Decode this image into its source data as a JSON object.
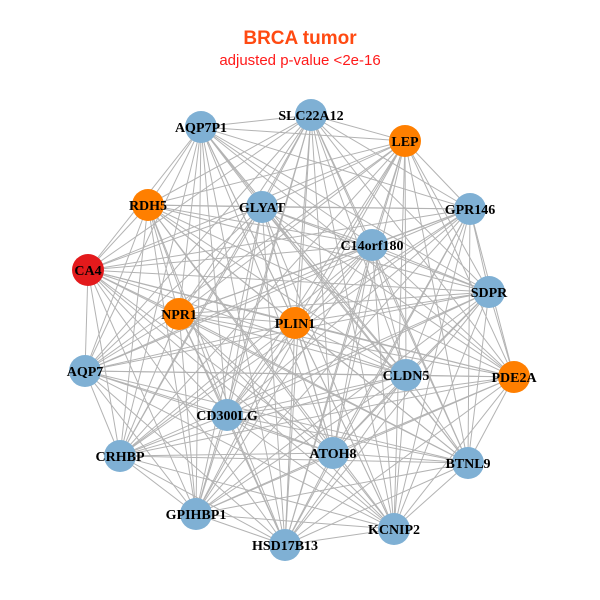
{
  "title": "BRCA tumor",
  "subtitle": "adjusted p-value <2e-16",
  "colors": {
    "blue": "#7fb0d4",
    "orange": "#ff7f00",
    "red": "#e31a1c",
    "edge": "#b3b3b3"
  },
  "nodes": [
    {
      "id": "SLC22A12",
      "color": "blue"
    },
    {
      "id": "AQP7P1",
      "color": "blue"
    },
    {
      "id": "LEP",
      "color": "orange"
    },
    {
      "id": "RDH5",
      "color": "orange"
    },
    {
      "id": "GLYAT",
      "color": "blue"
    },
    {
      "id": "GPR146",
      "color": "blue"
    },
    {
      "id": "C14orf180",
      "color": "blue"
    },
    {
      "id": "CA4",
      "color": "red"
    },
    {
      "id": "SDPR",
      "color": "blue"
    },
    {
      "id": "NPR1",
      "color": "orange"
    },
    {
      "id": "PLIN1",
      "color": "orange"
    },
    {
      "id": "AQP7",
      "color": "blue"
    },
    {
      "id": "CLDN5",
      "color": "blue"
    },
    {
      "id": "PDE2A",
      "color": "orange"
    },
    {
      "id": "CD300LG",
      "color": "blue"
    },
    {
      "id": "CRHBP",
      "color": "blue"
    },
    {
      "id": "ATOH8",
      "color": "blue"
    },
    {
      "id": "BTNL9",
      "color": "blue"
    },
    {
      "id": "GPIHBP1",
      "color": "blue"
    },
    {
      "id": "KCNIP2",
      "color": "blue"
    },
    {
      "id": "HSD17B13",
      "color": "blue"
    }
  ],
  "edges_mode": "fully-connected"
}
